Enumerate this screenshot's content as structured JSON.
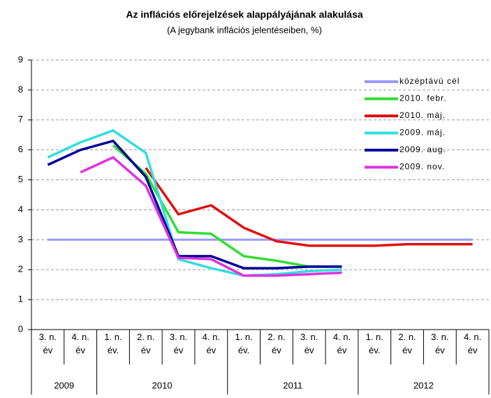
{
  "chart_data": {
    "type": "line",
    "title": "Az inflációs előrejelzések alappályájának alakulása",
    "subtitle": "(A jegybank inflációs jelentéseiben, %)",
    "categories": [
      "3. n.\név",
      "4. n.\név",
      "1. n.\név.",
      "2. n.\név",
      "3. n.\név",
      "4. n.\név",
      "1. n.\név.",
      "2. n.\név",
      "3. n.\név",
      "4. n.\név",
      "1. n.\név.",
      "2. n.\név",
      "3. n.\név",
      "4. n.\név"
    ],
    "years": [
      {
        "label": "2009",
        "span": 2
      },
      {
        "label": "2010",
        "span": 4
      },
      {
        "label": "2011",
        "span": 4
      },
      {
        "label": "2012",
        "span": 4
      }
    ],
    "ylim": [
      0,
      9
    ],
    "yticks": [
      0,
      1,
      2,
      3,
      4,
      5,
      6,
      7,
      8,
      9
    ],
    "grid": true,
    "legend": "upper right",
    "series": [
      {
        "name": "középtávú cél",
        "color": "#9999ff",
        "values": [
          3,
          3,
          3,
          3,
          3,
          3,
          3,
          3,
          3,
          3,
          3,
          3,
          3,
          3
        ]
      },
      {
        "name": "2010. febr.",
        "color": "#33dd33",
        "values": [
          null,
          null,
          6.15,
          5.2,
          3.25,
          3.2,
          2.45,
          2.3,
          2.1,
          2.1,
          null,
          null,
          null,
          null
        ]
      },
      {
        "name": "2010. máj.",
        "color": "#dd1111",
        "values": [
          null,
          null,
          null,
          5.4,
          3.85,
          4.15,
          3.4,
          2.95,
          2.8,
          2.8,
          2.8,
          2.85,
          2.85,
          2.85
        ]
      },
      {
        "name": "2009. máj.",
        "color": "#33dddd",
        "values": [
          5.75,
          6.25,
          6.65,
          5.9,
          2.35,
          2.05,
          1.8,
          1.85,
          1.95,
          2.0,
          null,
          null,
          null,
          null
        ]
      },
      {
        "name": "2009. aug.",
        "color": "#000099",
        "values": [
          5.5,
          6.0,
          6.3,
          5.1,
          2.45,
          2.45,
          2.05,
          2.05,
          2.1,
          2.1,
          null,
          null,
          null,
          null
        ]
      },
      {
        "name": "2009. nov.",
        "color": "#dd33dd",
        "values": [
          null,
          5.25,
          5.75,
          4.8,
          2.4,
          2.35,
          1.8,
          1.8,
          1.85,
          1.9,
          null,
          null,
          null,
          null
        ]
      }
    ]
  }
}
